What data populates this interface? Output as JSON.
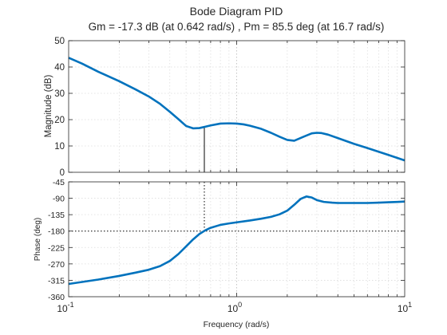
{
  "chart_data": [
    {
      "type": "line",
      "panel": "magnitude",
      "title": "Bode Diagram PID",
      "subtitle": "Gm = -17.3 dB (at 0.642 rad/s) ,  Pm = 85.5 deg (at 16.7 rad/s)",
      "xlabel": "",
      "ylabel": "Magnitude (dB)",
      "xscale": "log",
      "xlim": [
        0.1,
        10
      ],
      "ylim": [
        0,
        50
      ],
      "yticks": [
        0,
        10,
        20,
        30,
        40,
        50
      ],
      "grid": true,
      "color": "#0072BD",
      "marker_line": {
        "x": 0.642,
        "y_from": 0,
        "y_to": 17.3
      },
      "x": [
        0.1,
        0.12,
        0.15,
        0.2,
        0.25,
        0.3,
        0.35,
        0.4,
        0.45,
        0.5,
        0.55,
        0.6,
        0.65,
        0.7,
        0.8,
        0.9,
        1.0,
        1.1,
        1.2,
        1.4,
        1.6,
        1.8,
        2.0,
        2.2,
        2.5,
        2.8,
        3.0,
        3.2,
        3.5,
        4.0,
        5.0,
        6.0,
        7.0,
        8.0,
        9.0,
        10.0
      ],
      "values": [
        43.5,
        41.3,
        38.2,
        34.6,
        31.5,
        28.8,
        26.0,
        23.0,
        20.2,
        17.6,
        16.7,
        16.8,
        17.3,
        17.8,
        18.5,
        18.6,
        18.5,
        18.2,
        17.7,
        16.5,
        15.0,
        13.5,
        12.3,
        12.0,
        13.5,
        14.8,
        15.0,
        14.9,
        14.3,
        13.0,
        10.8,
        9.2,
        7.8,
        6.6,
        5.5,
        4.5
      ]
    },
    {
      "type": "line",
      "panel": "phase",
      "xlabel": "Frequency  (rad/s)",
      "ylabel": "Phase (deg)",
      "xscale": "log",
      "xlim": [
        0.1,
        10
      ],
      "xtick_labels": [
        "10",
        "10",
        "10"
      ],
      "xtick_exponents": [
        "-1",
        "0",
        "1"
      ],
      "ylim": [
        -360,
        -45
      ],
      "yticks": [
        -360,
        -315,
        -270,
        -225,
        -180,
        -135,
        -90,
        -45
      ],
      "grid": true,
      "color": "#0072BD",
      "reference_line": {
        "y": -180
      },
      "marker_line": {
        "x": 0.642
      },
      "x": [
        0.1,
        0.15,
        0.2,
        0.25,
        0.3,
        0.35,
        0.4,
        0.45,
        0.5,
        0.55,
        0.6,
        0.65,
        0.7,
        0.8,
        0.9,
        1.0,
        1.2,
        1.4,
        1.6,
        1.8,
        2.0,
        2.2,
        2.4,
        2.6,
        2.8,
        3.0,
        3.3,
        3.7,
        4.0,
        5.0,
        6.0,
        7.0,
        8.0,
        9.0,
        10.0
      ],
      "values": [
        -325,
        -313,
        -303,
        -294,
        -286,
        -276,
        -262,
        -243,
        -222,
        -203,
        -188,
        -178,
        -171,
        -163,
        -159,
        -156,
        -151,
        -146,
        -141,
        -134,
        -124,
        -108,
        -92,
        -85,
        -88,
        -95,
        -100,
        -102,
        -103,
        -103,
        -103,
        -102,
        -101,
        -100,
        -99
      ]
    }
  ]
}
